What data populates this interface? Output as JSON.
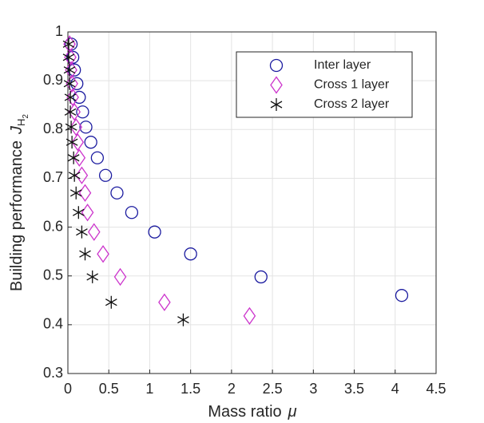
{
  "chart_data": {
    "type": "scatter",
    "xlabel": "Mass ratio",
    "xlabel_symbol": "μ",
    "ylabel": "Building performance",
    "ylabel_symbol": "J",
    "ylabel_sub": "H",
    "ylabel_subsub": "2",
    "xlim": [
      0,
      4.5
    ],
    "ylim": [
      0.3,
      1
    ],
    "xticks": [
      0,
      0.5,
      1,
      1.5,
      2,
      2.5,
      3,
      3.5,
      4,
      4.5
    ],
    "yticks": [
      0.3,
      0.4,
      0.5,
      0.6,
      0.7,
      0.8,
      0.9,
      1
    ],
    "grid": true,
    "legend": "upper right",
    "series": [
      {
        "name": "Inter layer",
        "color": "#1c1ca0",
        "marker": "circle",
        "x": [
          4.08,
          2.36,
          1.5,
          1.06,
          0.78,
          0.6,
          0.46,
          0.36,
          0.28,
          0.22,
          0.18,
          0.14,
          0.11,
          0.08,
          0.06,
          0.04
        ],
        "values": [
          0.46,
          0.498,
          0.545,
          0.59,
          0.63,
          0.67,
          0.706,
          0.742,
          0.774,
          0.805,
          0.836,
          0.866,
          0.894,
          0.922,
          0.948,
          0.975
        ]
      },
      {
        "name": "Cross 1 layer",
        "color": "#cc33cc",
        "marker": "diamond",
        "x": [
          2.22,
          1.18,
          0.64,
          0.43,
          0.32,
          0.24,
          0.21,
          0.17,
          0.14,
          0.12,
          0.1,
          0.08,
          0.06,
          0.05,
          0.04,
          0.03,
          0.02
        ],
        "values": [
          0.418,
          0.446,
          0.498,
          0.545,
          0.59,
          0.63,
          0.67,
          0.706,
          0.742,
          0.774,
          0.805,
          0.836,
          0.866,
          0.894,
          0.922,
          0.948,
          0.975
        ]
      },
      {
        "name": "Cross 2 layer",
        "color": "#111111",
        "marker": "asterisk",
        "x": [
          1.41,
          0.53,
          0.3,
          0.21,
          0.17,
          0.13,
          0.1,
          0.08,
          0.07,
          0.05,
          0.04,
          0.03,
          0.03,
          0.02,
          0.02,
          0.01,
          0.01
        ],
        "values": [
          0.41,
          0.446,
          0.498,
          0.545,
          0.59,
          0.63,
          0.67,
          0.706,
          0.742,
          0.774,
          0.805,
          0.836,
          0.866,
          0.894,
          0.922,
          0.948,
          0.975
        ]
      }
    ]
  }
}
